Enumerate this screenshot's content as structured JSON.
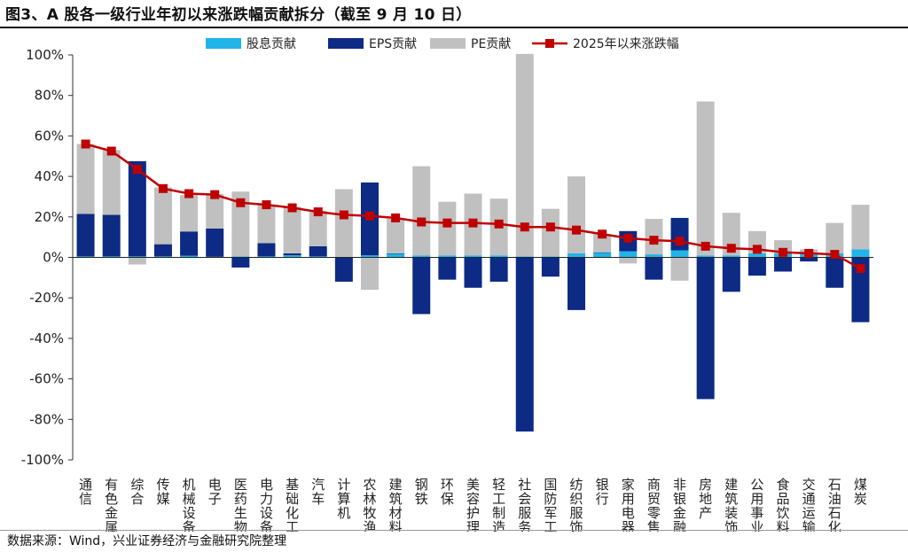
{
  "title": "图3、A 股各一级行业年初以来涨跌幅贡献拆分（截至 9 月 10 日）",
  "source": "数据来源：Wind，兴业证券经济与金融研究院整理",
  "colors": {
    "dividend": "#21b4e8",
    "eps": "#0d2a84",
    "pe": "#c0c0c0",
    "line": "#c00000"
  },
  "chart_data": {
    "type": "bar",
    "stacked": true,
    "ylim": [
      -100,
      100
    ],
    "yticks": [
      -100,
      -80,
      -60,
      -40,
      -20,
      0,
      20,
      40,
      60,
      80,
      100
    ],
    "ytick_suffix": "%",
    "legend": [
      "股息贡献",
      "EPS贡献",
      "PE贡献",
      "2025年以来涨跌幅"
    ],
    "legend_position": "top",
    "categories": [
      "通信",
      "有色金属",
      "综合",
      "传媒",
      "机械设备",
      "电子",
      "医药生物",
      "电力设备",
      "基础化工",
      "汽车",
      "计算机",
      "农林牧渔",
      "建筑材料",
      "钢铁",
      "环保",
      "美容护理",
      "轻工制造",
      "社会服务",
      "国防军工",
      "纺织服饰",
      "银行",
      "家用电器",
      "商贸零售",
      "非银金融",
      "房地产",
      "建筑装饰",
      "公用事业",
      "食品饮料",
      "交通运输",
      "石油石化",
      "煤炭"
    ],
    "series": [
      {
        "name": "股息贡献",
        "type": "bar",
        "values": [
          0.5,
          0.5,
          0.5,
          0.5,
          0.8,
          0.3,
          0.5,
          0.5,
          1,
          0.5,
          0.2,
          1,
          2,
          1,
          1,
          1,
          1,
          0.5,
          0.5,
          2,
          2.5,
          3,
          1.5,
          3.5,
          1,
          1,
          2,
          2,
          2,
          2,
          4
        ]
      },
      {
        "name": "EPS贡献",
        "type": "bar",
        "values": [
          21,
          20.5,
          47,
          6,
          12,
          14,
          -5,
          6.5,
          1,
          5,
          -12,
          36,
          0,
          -28,
          -11,
          -15,
          -12,
          -86,
          -9.5,
          -26,
          0,
          10,
          -11,
          16,
          -70,
          -17,
          -9,
          -7,
          -2,
          -15,
          -32
        ]
      },
      {
        "name": "PE贡献",
        "type": "bar",
        "values": [
          34.5,
          32,
          -3.5,
          28,
          18,
          17,
          32,
          19,
          23,
          17.5,
          33.5,
          -16,
          17,
          44,
          26.5,
          30.5,
          28,
          100,
          23.5,
          38,
          9,
          -3,
          17.5,
          -11.5,
          76,
          21,
          11,
          6.5,
          2,
          15,
          22
        ]
      },
      {
        "name": "2025年以来涨跌幅",
        "type": "line",
        "values": [
          56,
          52.5,
          43.5,
          34,
          31.5,
          31,
          27,
          26,
          24.5,
          22.5,
          21,
          20.5,
          19.5,
          17.5,
          17,
          17,
          16.5,
          15,
          15,
          13.5,
          11.5,
          9.5,
          8.5,
          8,
          5.5,
          4.5,
          4,
          2.5,
          2,
          1.5,
          -5.5
        ]
      }
    ]
  }
}
